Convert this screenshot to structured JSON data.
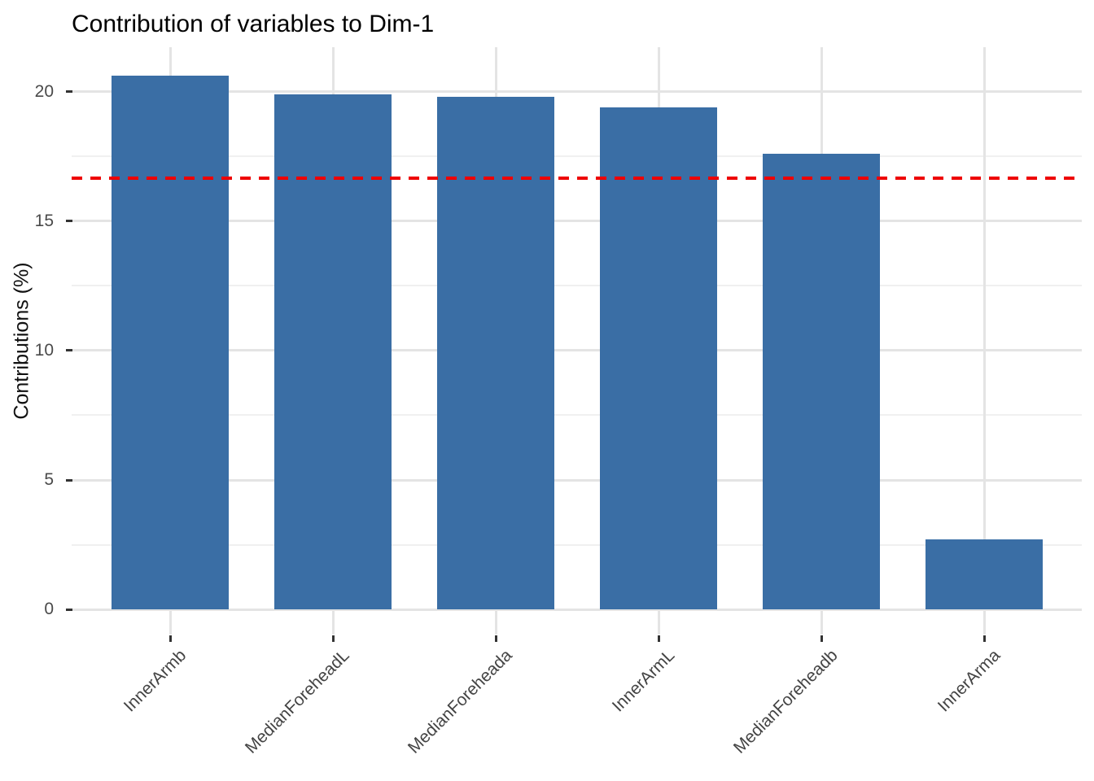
{
  "title": "Contribution of variables to Dim-1",
  "chart_data": {
    "type": "bar",
    "title": "Contribution of variables to Dim-1",
    "xlabel": "",
    "ylabel": "Contributions (%)",
    "categories": [
      "InnerArmb",
      "MedianForeheadL",
      "MedianForeheada",
      "InnerArmL",
      "MedianForeheadb",
      "InnerArma"
    ],
    "values": [
      20.6,
      19.9,
      19.8,
      19.4,
      17.6,
      2.7
    ],
    "bar_color": "#3a6ea5",
    "reference_line": {
      "value": 16.67,
      "color": "#ee0000",
      "style": "dashed"
    },
    "y_ticks": [
      0,
      5,
      10,
      15,
      20
    ],
    "y_minor_ticks": [
      2.5,
      7.5,
      12.5,
      17.5
    ],
    "ylim": [
      0,
      21.7
    ],
    "grid": "on",
    "legend": "none",
    "x_label_rotation_deg": 45
  }
}
